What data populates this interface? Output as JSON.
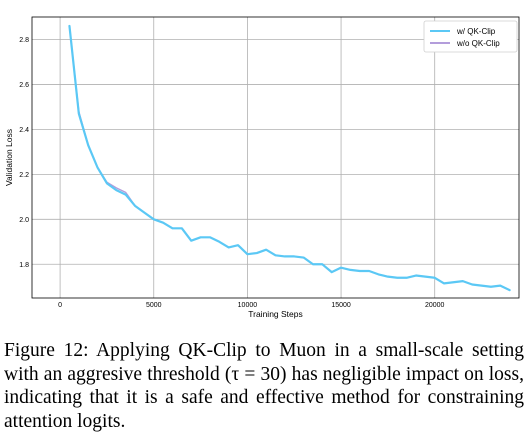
{
  "chart_data": {
    "type": "line",
    "xlabel": "Training Steps",
    "ylabel": "Validation Loss",
    "xlim": [
      -1500,
      24500
    ],
    "ylim": [
      1.65,
      2.9
    ],
    "xticks": [
      0,
      5000,
      10000,
      15000,
      20000
    ],
    "yticks": [
      1.8,
      2.0,
      2.2,
      2.4,
      2.6,
      2.8
    ],
    "xtick_labels": [
      "0",
      "5000",
      "10000",
      "15000",
      "20000"
    ],
    "ytick_labels": [
      "1.8",
      "2.0",
      "2.2",
      "2.4",
      "2.6",
      "2.8"
    ],
    "grid": true,
    "legend_position": "top-right",
    "series": [
      {
        "name": "w/ QK-Clip",
        "color": "#5bc8f5",
        "x": [
          500,
          1000,
          1500,
          2000,
          2500,
          3000,
          3500,
          4000,
          4500,
          5000,
          5500,
          6000,
          6500,
          7000,
          7500,
          8000,
          8500,
          9000,
          9500,
          10000,
          10500,
          11000,
          11500,
          12000,
          12500,
          13000,
          13500,
          14000,
          14500,
          15000,
          15500,
          16000,
          16500,
          17000,
          17500,
          18000,
          18500,
          19000,
          19500,
          20000,
          20500,
          21000,
          21500,
          22000,
          22500,
          23000,
          23500,
          24000
        ],
        "y": [
          2.86,
          2.47,
          2.33,
          2.23,
          2.16,
          2.13,
          2.11,
          2.06,
          2.03,
          2.0,
          1.985,
          1.96,
          1.96,
          1.905,
          1.92,
          1.92,
          1.9,
          1.875,
          1.885,
          1.845,
          1.85,
          1.865,
          1.84,
          1.835,
          1.835,
          1.83,
          1.8,
          1.8,
          1.765,
          1.785,
          1.775,
          1.77,
          1.77,
          1.755,
          1.745,
          1.74,
          1.74,
          1.75,
          1.745,
          1.74,
          1.715,
          1.72,
          1.725,
          1.71,
          1.705,
          1.7,
          1.705,
          1.685
        ]
      },
      {
        "name": "w/o QK-Clip",
        "color": "#b39ddb",
        "x": [
          500,
          1000,
          1500,
          2000,
          2500,
          3000,
          3500,
          4000,
          4500,
          5000,
          5500,
          6000,
          6500,
          7000,
          7500,
          8000,
          8500,
          9000,
          9500,
          10000,
          10500,
          11000,
          11500,
          12000,
          12500,
          13000,
          13500,
          14000,
          14500,
          15000,
          15500,
          16000,
          16500,
          17000,
          17500,
          18000,
          18500,
          19000,
          19500,
          20000,
          20500,
          21000,
          21500,
          22000,
          22500,
          23000,
          23500,
          24000
        ],
        "y": [
          2.86,
          2.48,
          2.33,
          2.23,
          2.165,
          2.14,
          2.12,
          2.06,
          2.03,
          2.0,
          1.985,
          1.96,
          1.96,
          1.905,
          1.92,
          1.92,
          1.9,
          1.875,
          1.885,
          1.845,
          1.85,
          1.865,
          1.84,
          1.835,
          1.835,
          1.83,
          1.8,
          1.8,
          1.765,
          1.785,
          1.775,
          1.77,
          1.77,
          1.755,
          1.745,
          1.74,
          1.74,
          1.75,
          1.745,
          1.74,
          1.715,
          1.72,
          1.725,
          1.71,
          1.705,
          1.7,
          1.705,
          1.685
        ]
      }
    ]
  },
  "caption": "Figure 12: Applying QK-Clip to Muon in a small-scale setting with an aggresive threshold (τ = 30) has negligible impact on loss, indicating that it is a safe and effective method for constraining attention logits."
}
